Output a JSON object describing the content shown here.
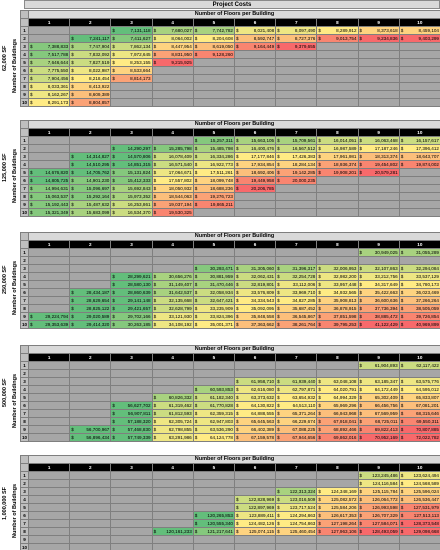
{
  "title": "Project Costs",
  "floors_header": "Number of Floors per Building",
  "buildings_label": "Number of Buildings",
  "columns": [
    "1",
    "2",
    "3",
    "4",
    "5",
    "6",
    "7",
    "8",
    "9",
    "10"
  ],
  "rows": [
    "1",
    "2",
    "3",
    "4",
    "5",
    "6",
    "7",
    "8",
    "9",
    "10"
  ],
  "sections": [
    {
      "label": "62,000 SF",
      "cells": [
        [
          "",
          "",
          "7,131,118",
          "7,680,027",
          "7,742,782",
          "8,021,408",
          "8,097,490",
          "8,289,912",
          "8,373,618",
          "8,459,104"
        ],
        [
          "",
          "7,241,117",
          "7,411,627",
          "8,064,002",
          "8,204,608",
          "8,592,747",
          "8,727,376",
          "9,013,754",
          "9,234,836",
          "9,403,299"
        ],
        [
          "7,388,833",
          "7,747,904",
          "7,862,134",
          "8,447,954",
          "8,619,050",
          "9,164,449",
          "9,379,655",
          "",
          "",
          ""
        ],
        [
          "7,517,788",
          "7,832,092",
          "7,972,645",
          "8,831,950",
          "9,128,260",
          "",
          "",
          "",
          "",
          ""
        ],
        [
          "7,646,644",
          "7,827,519",
          "8,253,155",
          "9,215,925",
          "",
          "",
          "",
          "",
          "",
          ""
        ],
        [
          "7,775,550",
          "8,022,987",
          "8,533,664",
          "",
          "",
          "",
          "",
          "",
          "",
          ""
        ],
        [
          "7,904,456",
          "8,218,454",
          "8,814,173",
          "",
          "",
          "",
          "",
          "",
          "",
          ""
        ],
        [
          "8,033,361",
          "8,413,922",
          "",
          "",
          "",
          "",
          "",
          "",
          "",
          ""
        ],
        [
          "8,162,267",
          "8,609,389",
          "",
          "",
          "",
          "",
          "",
          "",
          "",
          ""
        ],
        [
          "8,291,173",
          "8,804,857",
          "",
          "",
          "",
          "",
          "",
          "",
          "",
          ""
        ]
      ]
    },
    {
      "label": "125,000 SF",
      "cells": [
        [
          "",
          "",
          "",
          "",
          "15,257,311",
          "15,663,105",
          "15,709,561",
          "16,014,051",
          "16,063,468",
          "16,157,617"
        ],
        [
          "",
          "",
          "14,290,297",
          "15,285,798",
          "15,485,798",
          "16,400,476",
          "16,567,512",
          "16,987,589",
          "17,187,246",
          "17,396,412"
        ],
        [
          "",
          "14,314,827",
          "14,570,806",
          "16,078,409",
          "16,334,286",
          "17,177,846",
          "17,426,383",
          "17,961,981",
          "18,313,374",
          "18,643,707"
        ],
        [
          "",
          "14,510,295",
          "14,851,315",
          "16,571,540",
          "16,922,773",
          "17,934,854",
          "18,284,134",
          "18,936,374",
          "19,454,802",
          "19,874,002"
        ],
        [
          "14,676,820",
          "14,705,762",
          "15,131,824",
          "17,064,671",
          "17,511,261",
          "18,692,406",
          "19,142,285",
          "19,908,201",
          "20,579,281",
          ""
        ],
        [
          "14,805,725",
          "14,901,230",
          "15,412,333",
          "17,557,802",
          "18,099,748",
          "19,449,958",
          "20,000,235",
          "",
          "",
          ""
        ],
        [
          "14,994,631",
          "15,096,697",
          "15,692,843",
          "18,050,932",
          "18,688,236",
          "20,206,785",
          "",
          "",
          "",
          ""
        ],
        [
          "15,063,537",
          "15,292,164",
          "15,973,352",
          "18,544,063",
          "19,276,723",
          "",
          "",
          "",
          "",
          ""
        ],
        [
          "15,192,443",
          "15,487,632",
          "16,253,861",
          "19,037,194",
          "19,865,211",
          "",
          "",
          "",
          "",
          ""
        ],
        [
          "15,321,349",
          "15,683,099",
          "16,534,370",
          "19,530,325",
          "",
          "",
          "",
          "",
          "",
          ""
        ]
      ]
    },
    {
      "label": "250,000 SF",
      "cells": [
        [
          "",
          "",
          "",
          "",
          "",
          "",
          "",
          "",
          "30,949,025",
          "31,055,289"
        ],
        [
          "",
          "",
          "",
          "",
          "",
          "",
          "",
          "",
          "",
          ""
        ],
        [
          "",
          "",
          "",
          "",
          "30,293,471",
          "31,305,060",
          "31,396,317",
          "32,006,953",
          "32,107,863",
          "32,294,084"
        ],
        [
          "",
          "",
          "28,299,621",
          "30,656,276",
          "30,881,959",
          "32,062,431",
          "32,254,728",
          "32,982,200",
          "33,212,756",
          "33,537,129"
        ],
        [
          "",
          "",
          "28,580,130",
          "31,149,407",
          "31,470,446",
          "32,819,801",
          "33,112,006",
          "33,957,448",
          "34,317,649",
          "34,780,173"
        ],
        [
          "",
          "28,434,187",
          "28,860,639",
          "31,642,537",
          "32,058,934",
          "33,576,809",
          "33,969,710",
          "34,932,565",
          "35,422,663",
          "36,023,469"
        ],
        [
          "",
          "28,629,654",
          "29,141,148",
          "32,135,668",
          "32,647,421",
          "34,334,543",
          "34,827,285",
          "35,908,813",
          "36,600,636",
          "37,266,264"
        ],
        [
          "",
          "28,825,122",
          "29,421,657",
          "32,628,799",
          "33,235,909",
          "35,092,095",
          "35,687,452",
          "36,878,915",
          "37,736,394",
          "38,505,059"
        ],
        [
          "29,224,794",
          "29,020,589",
          "29,702,166",
          "33,121,930",
          "33,824,396",
          "35,848,558",
          "36,545,867",
          "37,851,598",
          "38,885,472",
          "39,726,854"
        ],
        [
          "29,353,639",
          "29,414,320",
          "30,263,185",
          "34,108,192",
          "35,001,371",
          "37,363,662",
          "38,261,764",
          "39,795,253",
          "41,122,429",
          "40,969,899"
        ]
      ]
    },
    {
      "label": "500,000 SF",
      "cells": [
        [
          "",
          "",
          "",
          "",
          "",
          "",
          "",
          "",
          "61,904,893",
          "62,117,422"
        ],
        [
          "",
          "",
          "",
          "",
          "",
          "",
          "",
          "",
          "",
          ""
        ],
        [
          "",
          "",
          "",
          "",
          "",
          "61,958,710",
          "61,939,440",
          "63,048,108",
          "63,185,347",
          "63,575,776"
        ],
        [
          "",
          "",
          "",
          "",
          "60,593,853",
          "62,616,080",
          "62,797,871",
          "64,020,791",
          "64,172,449",
          "64,595,012"
        ],
        [
          "",
          "",
          "",
          "60,826,332",
          "61,182,340",
          "63,373,632",
          "63,654,932",
          "64,994,329",
          "65,302,409",
          "65,833,807"
        ],
        [
          "",
          "",
          "56,627,702",
          "61,319,462",
          "61,770,828",
          "64,130,822",
          "64,513,110",
          "65,969,296",
          "66,456,756",
          "67,081,201"
        ],
        [
          "",
          "",
          "56,907,811",
          "61,812,593",
          "62,359,315",
          "64,888,555",
          "65,371,264",
          "66,943,968",
          "67,569,959",
          "68,315,646"
        ],
        [
          "",
          "",
          "57,188,320",
          "62,305,724",
          "62,947,803",
          "65,645,563",
          "66,229,674",
          "67,918,041",
          "68,725,011",
          "69,550,311"
        ],
        [
          "",
          "56,700,967",
          "57,468,830",
          "62,798,855",
          "63,536,290",
          "66,402,389",
          "67,088,225",
          "68,892,466",
          "69,822,413",
          "70,807,885"
        ],
        [
          "",
          "56,896,434",
          "57,749,339",
          "63,291,986",
          "64,124,778",
          "67,159,578",
          "67,944,656",
          "69,862,016",
          "70,952,169",
          "72,022,782"
        ]
      ]
    },
    {
      "label": "1,000,000 SF",
      "cells": [
        [
          "",
          "",
          "",
          "",
          "",
          "",
          "",
          "",
          "123,245,486",
          "123,624,494"
        ],
        [
          "",
          "",
          "",
          "",
          "",
          "",
          "",
          "",
          "124,116,584",
          "124,568,589"
        ],
        [
          "",
          "",
          "",
          "",
          "",
          "",
          "122,313,324",
          "124,348,169",
          "125,115,784",
          "125,596,024"
        ],
        [
          "",
          "",
          "",
          "",
          "",
          "122,828,969",
          "123,016,509",
          "125,082,572",
          "126,064,772",
          "126,536,447"
        ],
        [
          "",
          "",
          "",
          "",
          "",
          "122,897,969",
          "123,717,524",
          "125,584,206",
          "126,993,598",
          "127,531,979"
        ],
        [
          "",
          "",
          "",
          "",
          "120,265,853",
          "123,889,411",
          "124,294,863",
          "126,617,353",
          "126,707,329",
          "127,513,113"
        ],
        [
          "",
          "",
          "",
          "",
          "120,555,340",
          "124,482,126",
          "124,754,863",
          "127,198,264",
          "127,584,071",
          "128,373,548"
        ],
        [
          "",
          "",
          "",
          "120,161,233",
          "121,217,641",
          "125,074,115",
          "125,460,454",
          "127,963,106",
          "128,493,059",
          "129,098,668"
        ],
        [
          "",
          "",
          "",
          "",
          "",
          "",
          "",
          "",
          "",
          ""
        ],
        [
          "",
          "",
          "",
          "",
          "",
          "",
          "",
          "",
          "",
          ""
        ]
      ]
    }
  ]
}
